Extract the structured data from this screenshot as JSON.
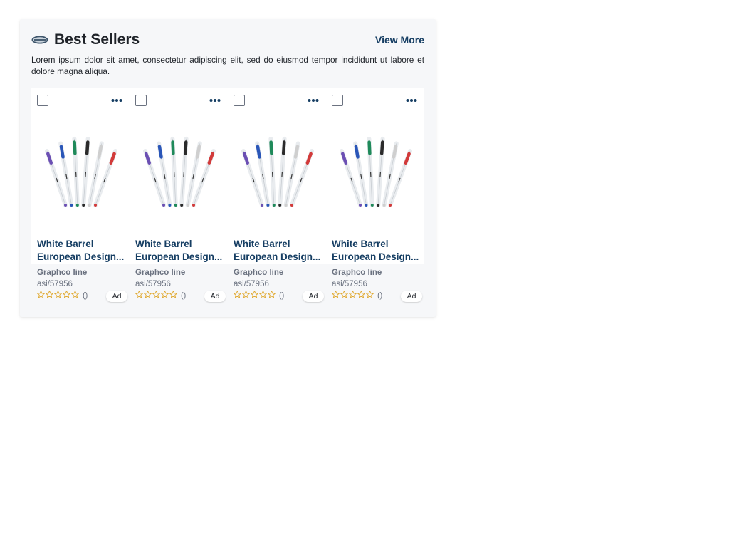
{
  "section": {
    "title": "Best Sellers",
    "view_more": "View More",
    "description": "Lorem ipsum dolor sit amet, consectetur adipiscing elit, sed do eiusmod tempor incididunt ut labore et dolore magna aliqua.",
    "logo_icon": "oval-badge-logo-icon"
  },
  "colors": {
    "accent": "#163e63",
    "title": "#1f2329",
    "muted": "#6b7280",
    "star": "#e0a82e",
    "panel_bg": "#f6f7f9"
  },
  "products": [
    {
      "name_line1": "White Barrel",
      "name_line2": "European Design...",
      "supplier": "Graphco line",
      "asi": "asi/57956",
      "rating_stars": 0,
      "rating_count": "()",
      "badge": "Ad"
    },
    {
      "name_line1": "White Barrel",
      "name_line2": "European Design...",
      "supplier": "Graphco line",
      "asi": "asi/57956",
      "rating_stars": 0,
      "rating_count": "()",
      "badge": "Ad"
    },
    {
      "name_line1": "White Barrel",
      "name_line2": "European Design...",
      "supplier": "Graphco line",
      "asi": "asi/57956",
      "rating_stars": 0,
      "rating_count": "()",
      "badge": "Ad"
    },
    {
      "name_line1": "White Barrel",
      "name_line2": "European Design...",
      "supplier": "Graphco line",
      "asi": "asi/57956",
      "rating_stars": 0,
      "rating_count": "()",
      "badge": "Ad"
    }
  ],
  "icons": {
    "more": "more-horizontal-icon",
    "star": "star-outline-icon",
    "checkbox": "checkbox"
  },
  "pen_colors": [
    "#6b4fb3",
    "#2a56b8",
    "#1f8a5a",
    "#2b2b2b",
    "#cfcfcf",
    "#d23a3a"
  ]
}
